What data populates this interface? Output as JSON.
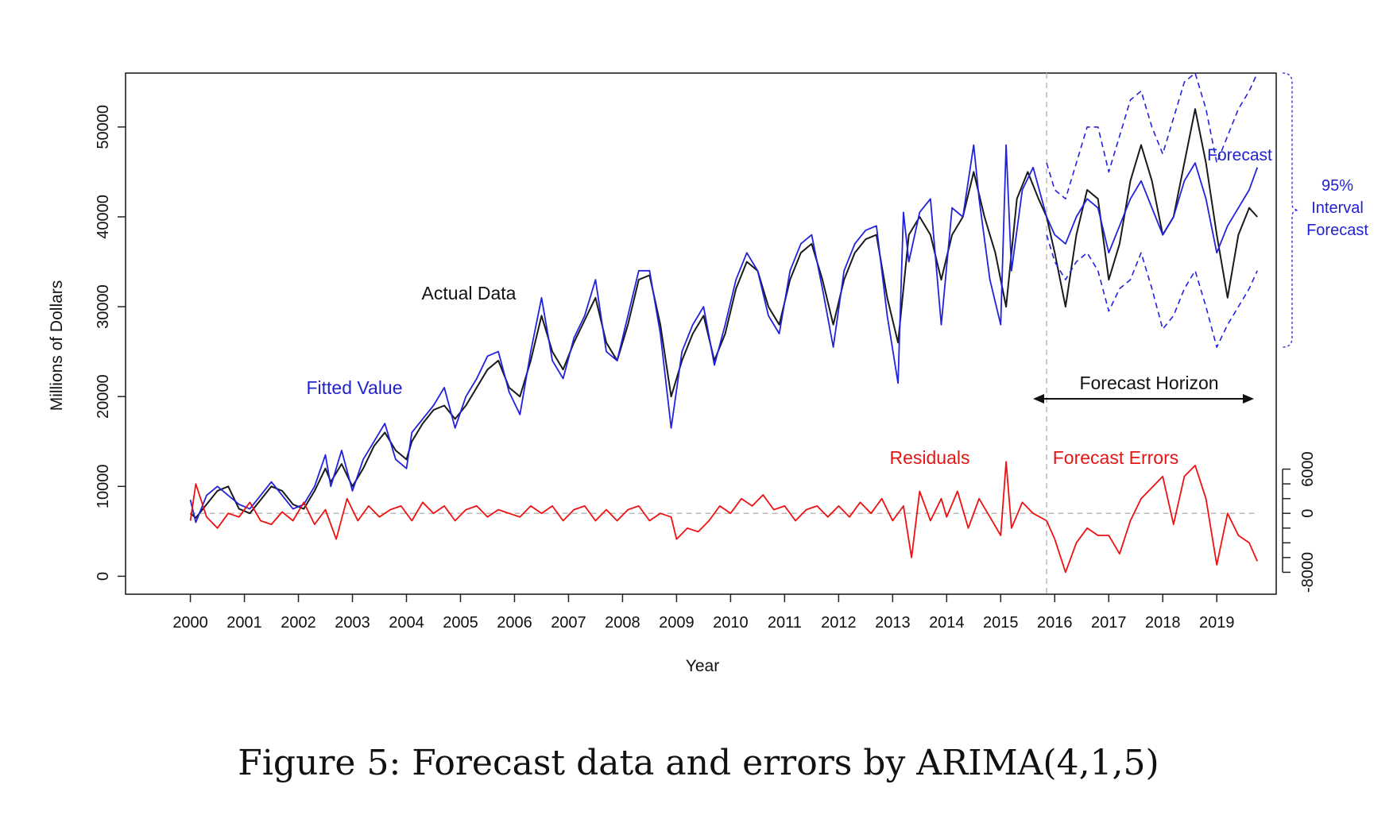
{
  "caption": "Figure 5: Forecast data and errors by ARIMA(4,1,5)",
  "colors": {
    "actual": "#1a1a1a",
    "fitted": "#2222dd",
    "forecast": "#2222dd",
    "interval": "#2222dd",
    "residual": "#ee1111",
    "forecast_error": "#ee1111",
    "reference": "#bbbbbb",
    "annotation_black": "#111111",
    "annotation_blue": "#2222cc",
    "annotation_red": "#e31515"
  },
  "chart_data": {
    "type": "line",
    "title": "",
    "xlabel": "Year",
    "ylabel": "Millions of Dollars",
    "xlim": [
      1998.8,
      2020.1
    ],
    "ylim": [
      -2000,
      56000
    ],
    "x_ticks": [
      "2000",
      "2001",
      "2002",
      "2003",
      "2004",
      "2005",
      "2006",
      "2007",
      "2008",
      "2009",
      "2010",
      "2011",
      "2012",
      "2013",
      "2014",
      "2015",
      "2016",
      "2017",
      "2018",
      "2019"
    ],
    "y_ticks": [
      "0",
      "10000",
      "20000",
      "30000",
      "40000",
      "50000"
    ],
    "y2_ticks": [
      "6000",
      "0",
      "-8000"
    ],
    "y2_minor": [
      6000,
      4000,
      2000,
      0,
      -2000,
      -4000,
      -6000,
      -8000
    ],
    "y2_axis": {
      "map_value": 0,
      "map_to_y": 7000,
      "scale": 0.82
    },
    "forecast_start": 2015.85,
    "annotations": {
      "actual": "Actual Data",
      "fitted": "Fitted Value",
      "forecast": "Forecast",
      "interval": [
        "95%",
        "Interval",
        "Forecast"
      ],
      "horizon": "Forecast Horizon",
      "residuals": "Residuals",
      "forecast_errors": "Forecast Errors"
    },
    "series": [
      {
        "name": "Actual Data",
        "key": "actual",
        "x": [
          2000.0,
          2000.1,
          2000.3,
          2000.5,
          2000.7,
          2000.9,
          2001.1,
          2001.3,
          2001.5,
          2001.7,
          2001.9,
          2002.1,
          2002.3,
          2002.5,
          2002.6,
          2002.8,
          2003.0,
          2003.2,
          2003.4,
          2003.6,
          2003.8,
          2004.0,
          2004.1,
          2004.3,
          2004.5,
          2004.7,
          2004.9,
          2005.1,
          2005.3,
          2005.5,
          2005.7,
          2005.9,
          2006.1,
          2006.3,
          2006.5,
          2006.7,
          2006.9,
          2007.1,
          2007.3,
          2007.5,
          2007.7,
          2007.9,
          2008.1,
          2008.3,
          2008.5,
          2008.7,
          2008.9,
          2009.1,
          2009.3,
          2009.5,
          2009.7,
          2009.9,
          2010.1,
          2010.3,
          2010.5,
          2010.7,
          2010.9,
          2011.1,
          2011.3,
          2011.5,
          2011.7,
          2011.9,
          2012.1,
          2012.3,
          2012.5,
          2012.7,
          2012.9,
          2013.1,
          2013.3,
          2013.5,
          2013.7,
          2013.9,
          2014.1,
          2014.3,
          2014.5,
          2014.7,
          2014.9,
          2015.1,
          2015.3,
          2015.5,
          2015.7,
          2015.85,
          2016.0,
          2016.2,
          2016.4,
          2016.6,
          2016.8,
          2017.0,
          2017.2,
          2017.4,
          2017.6,
          2017.8,
          2018.0,
          2018.2,
          2018.4,
          2018.6,
          2018.8,
          2019.0,
          2019.2,
          2019.4,
          2019.6,
          2019.75
        ],
        "y": [
          7000,
          6500,
          8000,
          9500,
          10000,
          7500,
          7000,
          8500,
          10000,
          9500,
          8000,
          7500,
          9500,
          12000,
          10500,
          12500,
          10000,
          12000,
          14500,
          16000,
          14000,
          13000,
          15000,
          17000,
          18500,
          19000,
          17500,
          19000,
          21000,
          23000,
          24000,
          21000,
          20000,
          24000,
          29000,
          25000,
          23000,
          26000,
          28500,
          31000,
          26000,
          24000,
          28000,
          33000,
          33500,
          28000,
          20000,
          24000,
          27000,
          29000,
          24000,
          27000,
          32000,
          35000,
          34000,
          30000,
          28000,
          33000,
          36000,
          37000,
          33000,
          28000,
          33000,
          36000,
          37500,
          38000,
          31000,
          26000,
          38000,
          40000,
          38000,
          33000,
          38000,
          40000,
          45000,
          40000,
          36000,
          30000,
          42000,
          45000,
          42000,
          40000,
          36000,
          30000,
          38000,
          43000,
          42000,
          33000,
          37000,
          44000,
          48000,
          44000,
          38000,
          40000,
          46000,
          52000,
          46000,
          38000,
          31000,
          38000,
          41000,
          40000
        ]
      },
      {
        "name": "Fitted Value",
        "key": "fitted",
        "x": [
          2000.0,
          2000.1,
          2000.3,
          2000.5,
          2000.7,
          2000.9,
          2001.1,
          2001.3,
          2001.5,
          2001.7,
          2001.9,
          2002.1,
          2002.3,
          2002.5,
          2002.6,
          2002.8,
          2003.0,
          2003.2,
          2003.4,
          2003.6,
          2003.8,
          2004.0,
          2004.1,
          2004.3,
          2004.5,
          2004.7,
          2004.9,
          2005.1,
          2005.3,
          2005.5,
          2005.7,
          2005.9,
          2006.1,
          2006.3,
          2006.5,
          2006.7,
          2006.9,
          2007.1,
          2007.3,
          2007.5,
          2007.7,
          2007.9,
          2008.1,
          2008.3,
          2008.5,
          2008.7,
          2008.9,
          2009.1,
          2009.3,
          2009.5,
          2009.7,
          2009.9,
          2010.1,
          2010.3,
          2010.5,
          2010.7,
          2010.9,
          2011.1,
          2011.3,
          2011.5,
          2011.7,
          2011.9,
          2012.1,
          2012.3,
          2012.5,
          2012.7,
          2012.9,
          2013.1,
          2013.2,
          2013.3,
          2013.5,
          2013.7,
          2013.9,
          2014.1,
          2014.3,
          2014.5,
          2014.6,
          2014.8,
          2015.0,
          2015.1,
          2015.2,
          2015.4,
          2015.6,
          2015.85
        ],
        "y": [
          8500,
          6000,
          9000,
          10000,
          9000,
          8000,
          7500,
          9000,
          10500,
          9000,
          7500,
          8000,
          10000,
          13500,
          10000,
          14000,
          9500,
          13000,
          15000,
          17000,
          13000,
          12000,
          16000,
          17500,
          19000,
          21000,
          16500,
          20000,
          22000,
          24500,
          25000,
          20500,
          18000,
          25000,
          31000,
          24000,
          22000,
          26500,
          29000,
          33000,
          25000,
          24000,
          29000,
          34000,
          34000,
          27000,
          16500,
          25000,
          28000,
          30000,
          23500,
          28000,
          33000,
          36000,
          34000,
          29000,
          27000,
          34000,
          37000,
          38000,
          32000,
          25500,
          34000,
          37000,
          38500,
          39000,
          29000,
          21500,
          40500,
          35000,
          40500,
          42000,
          28000,
          41000,
          40000,
          48000,
          42000,
          33000,
          28000,
          48000,
          34000,
          43000,
          45500,
          40000
        ]
      },
      {
        "name": "Forecast",
        "key": "forecast",
        "x": [
          2015.85,
          2016.0,
          2016.2,
          2016.4,
          2016.6,
          2016.8,
          2017.0,
          2017.2,
          2017.4,
          2017.6,
          2017.8,
          2018.0,
          2018.2,
          2018.4,
          2018.6,
          2018.8,
          2019.0,
          2019.2,
          2019.4,
          2019.6,
          2019.75
        ],
        "y": [
          40000,
          38000,
          37000,
          40000,
          42000,
          41000,
          36000,
          39000,
          42000,
          44000,
          41000,
          38000,
          40000,
          44000,
          46000,
          42000,
          36000,
          39000,
          41000,
          43000,
          45500
        ]
      },
      {
        "name": "95% Interval Upper",
        "key": "interval",
        "x": [
          2015.85,
          2016.0,
          2016.2,
          2016.4,
          2016.6,
          2016.8,
          2017.0,
          2017.2,
          2017.4,
          2017.6,
          2017.8,
          2018.0,
          2018.2,
          2018.4,
          2018.6,
          2018.8,
          2019.0,
          2019.2,
          2019.4,
          2019.6,
          2019.75
        ],
        "y": [
          46000,
          43000,
          42000,
          46000,
          50000,
          50000,
          45000,
          49000,
          53000,
          54000,
          50000,
          47000,
          51000,
          55000,
          56000,
          52000,
          46000,
          49000,
          52000,
          54000,
          56000
        ]
      },
      {
        "name": "95% Interval Lower",
        "key": "interval",
        "x": [
          2015.85,
          2016.0,
          2016.2,
          2016.4,
          2016.6,
          2016.8,
          2017.0,
          2017.2,
          2017.4,
          2017.6,
          2017.8,
          2018.0,
          2018.2,
          2018.4,
          2018.6,
          2018.8,
          2019.0,
          2019.2,
          2019.4,
          2019.6,
          2019.75
        ],
        "y": [
          38000,
          35000,
          33000,
          35000,
          36000,
          34000,
          29500,
          32000,
          33000,
          36000,
          32000,
          27500,
          29000,
          32000,
          34000,
          30000,
          25500,
          28000,
          30000,
          32000,
          34000
        ]
      },
      {
        "name": "Residuals",
        "key": "residual",
        "x": [
          2000.0,
          2000.1,
          2000.3,
          2000.5,
          2000.7,
          2000.9,
          2001.1,
          2001.3,
          2001.5,
          2001.7,
          2001.9,
          2002.1,
          2002.3,
          2002.5,
          2002.7,
          2002.9,
          2003.1,
          2003.3,
          2003.5,
          2003.7,
          2003.9,
          2004.1,
          2004.3,
          2004.5,
          2004.7,
          2004.9,
          2005.1,
          2005.3,
          2005.5,
          2005.7,
          2005.9,
          2006.1,
          2006.3,
          2006.5,
          2006.7,
          2006.9,
          2007.1,
          2007.3,
          2007.5,
          2007.7,
          2007.9,
          2008.1,
          2008.3,
          2008.5,
          2008.7,
          2008.9,
          2009.0,
          2009.2,
          2009.4,
          2009.6,
          2009.8,
          2010.0,
          2010.2,
          2010.4,
          2010.6,
          2010.8,
          2011.0,
          2011.2,
          2011.4,
          2011.6,
          2011.8,
          2012.0,
          2012.2,
          2012.4,
          2012.6,
          2012.8,
          2013.0,
          2013.2,
          2013.35,
          2013.5,
          2013.7,
          2013.9,
          2014.0,
          2014.2,
          2014.4,
          2014.6,
          2014.8,
          2015.0,
          2015.1,
          2015.2,
          2015.4,
          2015.6,
          2015.85
        ],
        "y": [
          -1000,
          4000,
          -500,
          -2000,
          0,
          -500,
          1500,
          -1000,
          -1500,
          200,
          -1000,
          1500,
          -1500,
          500,
          -3500,
          2000,
          -1000,
          1000,
          -500,
          500,
          1000,
          -1000,
          1500,
          0,
          1000,
          -1000,
          500,
          1000,
          -500,
          500,
          0,
          -500,
          1000,
          0,
          1000,
          -1000,
          500,
          1000,
          -1000,
          500,
          -1000,
          500,
          1000,
          -1000,
          0,
          -500,
          -3500,
          -2000,
          -2500,
          -1000,
          1000,
          0,
          2000,
          1000,
          2500,
          500,
          1000,
          -1000,
          500,
          1000,
          -500,
          1000,
          -500,
          1500,
          0,
          2000,
          -1000,
          1000,
          -6000,
          3000,
          -1000,
          2000,
          -500,
          3000,
          -2000,
          2000,
          -500,
          -3000,
          7000,
          -2000,
          1500,
          0,
          -1000
        ]
      },
      {
        "name": "Forecast Errors",
        "key": "forecast_error",
        "x": [
          2015.85,
          2016.0,
          2016.2,
          2016.4,
          2016.6,
          2016.8,
          2017.0,
          2017.2,
          2017.4,
          2017.6,
          2017.8,
          2018.0,
          2018.2,
          2018.4,
          2018.6,
          2018.8,
          2019.0,
          2019.2,
          2019.4,
          2019.6,
          2019.75
        ],
        "y": [
          -1000,
          -3500,
          -8000,
          -4000,
          -2000,
          -3000,
          -3000,
          -5500,
          -1000,
          2000,
          3500,
          5000,
          -1500,
          5000,
          6500,
          2000,
          -7000,
          0,
          -3000,
          -4000,
          -6500
        ]
      }
    ]
  }
}
